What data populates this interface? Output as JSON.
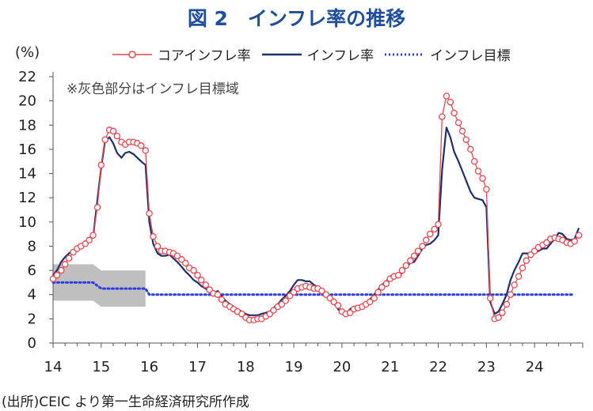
{
  "title": "図 2　インフレ率の推移",
  "unit_label": "(%)",
  "note": "※灰色部分はインフレ目標域",
  "source": "(出所)CEIC より第一生命経済研究所作成",
  "legend": {
    "core": "コアインフレ率",
    "headline": "インフレ率",
    "target": "インフレ目標"
  },
  "colors": {
    "title": "#1f4e9c",
    "core": "#e8474f",
    "headline": "#1f2f6b",
    "target": "#2b3fe0",
    "band": "#bfbfbf"
  },
  "chart_data": {
    "type": "line",
    "xlim": [
      14,
      25
    ],
    "ylim": [
      0,
      22
    ],
    "x_ticks": [
      "14",
      "15",
      "16",
      "17",
      "18",
      "19",
      "20",
      "21",
      "22",
      "23",
      "24"
    ],
    "y_ticks": [
      "0",
      "2",
      "4",
      "6",
      "8",
      "10",
      "12",
      "14",
      "16",
      "18",
      "20",
      "22"
    ],
    "grid": false,
    "legend_position": "top",
    "series": [
      {
        "name": "コアインフレ率",
        "marker": "circle",
        "points": [
          [
            14.0,
            5.3
          ],
          [
            14.08,
            5.6
          ],
          [
            14.17,
            6.0
          ],
          [
            14.25,
            6.5
          ],
          [
            14.33,
            7.0
          ],
          [
            14.42,
            7.5
          ],
          [
            14.5,
            7.8
          ],
          [
            14.58,
            8.0
          ],
          [
            14.67,
            8.2
          ],
          [
            14.75,
            8.5
          ],
          [
            14.83,
            8.9
          ],
          [
            14.92,
            11.2
          ],
          [
            15.0,
            14.7
          ],
          [
            15.08,
            16.8
          ],
          [
            15.17,
            17.6
          ],
          [
            15.25,
            17.5
          ],
          [
            15.33,
            17.1
          ],
          [
            15.42,
            16.6
          ],
          [
            15.5,
            16.4
          ],
          [
            15.58,
            16.6
          ],
          [
            15.67,
            16.6
          ],
          [
            15.75,
            16.5
          ],
          [
            15.83,
            16.3
          ],
          [
            15.92,
            15.9
          ],
          [
            16.0,
            10.7
          ],
          [
            16.08,
            8.8
          ],
          [
            16.17,
            8.0
          ],
          [
            16.25,
            7.6
          ],
          [
            16.33,
            7.6
          ],
          [
            16.42,
            7.5
          ],
          [
            16.5,
            7.4
          ],
          [
            16.58,
            7.2
          ],
          [
            16.67,
            6.9
          ],
          [
            16.75,
            6.6
          ],
          [
            16.83,
            6.2
          ],
          [
            16.92,
            6.0
          ],
          [
            17.0,
            5.6
          ],
          [
            17.08,
            5.2
          ],
          [
            17.17,
            4.8
          ],
          [
            17.25,
            4.4
          ],
          [
            17.33,
            4.1
          ],
          [
            17.42,
            4.0
          ],
          [
            17.5,
            3.6
          ],
          [
            17.58,
            3.2
          ],
          [
            17.67,
            3.0
          ],
          [
            17.75,
            2.8
          ],
          [
            17.83,
            2.6
          ],
          [
            17.92,
            2.4
          ],
          [
            18.0,
            2.1
          ],
          [
            18.08,
            1.9
          ],
          [
            18.17,
            1.9
          ],
          [
            18.25,
            2.0
          ],
          [
            18.33,
            2.0
          ],
          [
            18.42,
            2.2
          ],
          [
            18.5,
            2.4
          ],
          [
            18.58,
            2.7
          ],
          [
            18.67,
            3.0
          ],
          [
            18.75,
            3.2
          ],
          [
            18.83,
            3.5
          ],
          [
            18.92,
            3.9
          ],
          [
            19.0,
            4.2
          ],
          [
            19.08,
            4.5
          ],
          [
            19.17,
            4.6
          ],
          [
            19.25,
            4.7
          ],
          [
            19.33,
            4.6
          ],
          [
            19.42,
            4.5
          ],
          [
            19.5,
            4.5
          ],
          [
            19.58,
            4.3
          ],
          [
            19.67,
            4.0
          ],
          [
            19.75,
            3.7
          ],
          [
            19.83,
            3.4
          ],
          [
            19.92,
            3.1
          ],
          [
            20.0,
            2.6
          ],
          [
            20.08,
            2.4
          ],
          [
            20.17,
            2.5
          ],
          [
            20.25,
            2.8
          ],
          [
            20.33,
            2.9
          ],
          [
            20.42,
            3.0
          ],
          [
            20.5,
            3.2
          ],
          [
            20.58,
            3.4
          ],
          [
            20.67,
            3.7
          ],
          [
            20.75,
            4.2
          ],
          [
            20.83,
            4.6
          ],
          [
            20.92,
            4.9
          ],
          [
            21.0,
            5.3
          ],
          [
            21.08,
            5.5
          ],
          [
            21.17,
            5.6
          ],
          [
            21.25,
            6.0
          ],
          [
            21.33,
            6.4
          ],
          [
            21.42,
            6.8
          ],
          [
            21.5,
            7.2
          ],
          [
            21.58,
            7.6
          ],
          [
            21.67,
            8.0
          ],
          [
            21.75,
            8.5
          ],
          [
            21.83,
            9.0
          ],
          [
            21.92,
            9.4
          ],
          [
            22.0,
            9.8
          ],
          [
            22.08,
            18.7
          ],
          [
            22.17,
            20.4
          ],
          [
            22.25,
            19.9
          ],
          [
            22.33,
            19.0
          ],
          [
            22.42,
            18.2
          ],
          [
            22.5,
            17.5
          ],
          [
            22.58,
            16.8
          ],
          [
            22.67,
            16.0
          ],
          [
            22.75,
            15.0
          ],
          [
            22.83,
            14.2
          ],
          [
            22.92,
            13.6
          ],
          [
            23.0,
            12.7
          ],
          [
            23.08,
            3.7
          ],
          [
            23.17,
            2.0
          ],
          [
            23.25,
            2.1
          ],
          [
            23.33,
            2.5
          ],
          [
            23.42,
            3.2
          ],
          [
            23.5,
            4.0
          ],
          [
            23.58,
            4.8
          ],
          [
            23.67,
            5.5
          ],
          [
            23.75,
            6.2
          ],
          [
            23.83,
            6.8
          ],
          [
            23.92,
            7.3
          ],
          [
            24.0,
            7.6
          ],
          [
            24.08,
            7.9
          ],
          [
            24.17,
            8.1
          ],
          [
            24.25,
            8.3
          ],
          [
            24.33,
            8.6
          ],
          [
            24.42,
            8.7
          ],
          [
            24.5,
            8.6
          ],
          [
            24.58,
            8.5
          ],
          [
            24.67,
            8.3
          ],
          [
            24.75,
            8.2
          ],
          [
            24.83,
            8.4
          ],
          [
            24.92,
            8.9
          ]
        ]
      },
      {
        "name": "インフレ率",
        "marker": "none",
        "points": [
          [
            14.0,
            5.6
          ],
          [
            14.08,
            6.0
          ],
          [
            14.17,
            6.7
          ],
          [
            14.25,
            7.1
          ],
          [
            14.33,
            7.4
          ],
          [
            14.42,
            7.7
          ],
          [
            14.5,
            7.6
          ],
          [
            14.58,
            7.9
          ],
          [
            14.67,
            8.3
          ],
          [
            14.75,
            8.6
          ],
          [
            14.83,
            8.7
          ],
          [
            14.92,
            11.8
          ],
          [
            15.0,
            14.5
          ],
          [
            15.08,
            16.7
          ],
          [
            15.17,
            17.0
          ],
          [
            15.25,
            16.5
          ],
          [
            15.33,
            15.7
          ],
          [
            15.42,
            15.3
          ],
          [
            15.5,
            15.7
          ],
          [
            15.58,
            15.8
          ],
          [
            15.67,
            15.6
          ],
          [
            15.75,
            15.3
          ],
          [
            15.83,
            15.0
          ],
          [
            15.92,
            14.7
          ],
          [
            16.0,
            10.0
          ],
          [
            16.08,
            8.2
          ],
          [
            16.17,
            7.4
          ],
          [
            16.25,
            7.2
          ],
          [
            16.33,
            7.2
          ],
          [
            16.42,
            7.3
          ],
          [
            16.5,
            7.0
          ],
          [
            16.58,
            6.7
          ],
          [
            16.67,
            6.3
          ],
          [
            16.75,
            5.9
          ],
          [
            16.83,
            5.6
          ],
          [
            16.92,
            5.2
          ],
          [
            17.0,
            5.0
          ],
          [
            17.08,
            4.7
          ],
          [
            17.17,
            4.5
          ],
          [
            17.25,
            4.2
          ],
          [
            17.33,
            4.1
          ],
          [
            17.42,
            4.3
          ],
          [
            17.5,
            3.9
          ],
          [
            17.58,
            3.5
          ],
          [
            17.67,
            3.2
          ],
          [
            17.75,
            3.0
          ],
          [
            17.83,
            2.8
          ],
          [
            17.92,
            2.6
          ],
          [
            18.0,
            2.4
          ],
          [
            18.08,
            2.3
          ],
          [
            18.17,
            2.3
          ],
          [
            18.25,
            2.3
          ],
          [
            18.33,
            2.4
          ],
          [
            18.42,
            2.5
          ],
          [
            18.5,
            2.6
          ],
          [
            18.58,
            2.9
          ],
          [
            18.67,
            3.2
          ],
          [
            18.75,
            3.6
          ],
          [
            18.83,
            3.9
          ],
          [
            18.92,
            4.3
          ],
          [
            19.0,
            4.8
          ],
          [
            19.08,
            5.2
          ],
          [
            19.17,
            5.2
          ],
          [
            19.25,
            5.1
          ],
          [
            19.33,
            5.1
          ],
          [
            19.42,
            4.8
          ],
          [
            19.5,
            4.6
          ],
          [
            19.58,
            4.2
          ],
          [
            19.67,
            3.9
          ],
          [
            19.75,
            3.6
          ],
          [
            19.83,
            3.3
          ],
          [
            19.92,
            2.8
          ],
          [
            20.0,
            2.5
          ],
          [
            20.08,
            2.4
          ],
          [
            20.17,
            2.8
          ],
          [
            20.25,
            3.0
          ],
          [
            20.33,
            3.0
          ],
          [
            20.42,
            3.2
          ],
          [
            20.5,
            3.3
          ],
          [
            20.58,
            3.6
          ],
          [
            20.67,
            4.0
          ],
          [
            20.75,
            4.4
          ],
          [
            20.83,
            4.8
          ],
          [
            20.92,
            5.1
          ],
          [
            21.0,
            5.5
          ],
          [
            21.08,
            5.7
          ],
          [
            21.17,
            5.5
          ],
          [
            21.25,
            5.8
          ],
          [
            21.33,
            6.3
          ],
          [
            21.42,
            6.6
          ],
          [
            21.5,
            6.7
          ],
          [
            21.58,
            7.2
          ],
          [
            21.67,
            7.8
          ],
          [
            21.75,
            8.1
          ],
          [
            21.83,
            8.2
          ],
          [
            21.92,
            8.5
          ],
          [
            22.0,
            8.9
          ],
          [
            22.08,
            14.3
          ],
          [
            22.17,
            17.8
          ],
          [
            22.25,
            17.0
          ],
          [
            22.33,
            15.8
          ],
          [
            22.42,
            15.0
          ],
          [
            22.5,
            14.2
          ],
          [
            22.58,
            13.4
          ],
          [
            22.67,
            12.5
          ],
          [
            22.75,
            12.0
          ],
          [
            22.83,
            11.9
          ],
          [
            22.92,
            11.8
          ],
          [
            23.0,
            11.2
          ],
          [
            23.08,
            3.4
          ],
          [
            23.17,
            2.4
          ],
          [
            23.25,
            2.6
          ],
          [
            23.33,
            3.2
          ],
          [
            23.42,
            4.0
          ],
          [
            23.5,
            5.2
          ],
          [
            23.58,
            6.0
          ],
          [
            23.67,
            6.7
          ],
          [
            23.75,
            7.4
          ],
          [
            23.83,
            7.4
          ],
          [
            23.92,
            7.4
          ],
          [
            24.0,
            7.5
          ],
          [
            24.08,
            7.6
          ],
          [
            24.17,
            7.8
          ],
          [
            24.25,
            7.8
          ],
          [
            24.33,
            8.2
          ],
          [
            24.42,
            8.6
          ],
          [
            24.5,
            9.1
          ],
          [
            24.58,
            9.0
          ],
          [
            24.67,
            8.6
          ],
          [
            24.75,
            8.5
          ],
          [
            24.83,
            8.6
          ],
          [
            24.92,
            9.5
          ]
        ]
      },
      {
        "name": "インフレ目標",
        "marker": "dotted",
        "points": [
          [
            14.0,
            5.0
          ],
          [
            14.5,
            5.0
          ],
          [
            14.83,
            5.0
          ],
          [
            15.0,
            4.5
          ],
          [
            15.5,
            4.5
          ],
          [
            15.92,
            4.5
          ],
          [
            16.0,
            4.0
          ],
          [
            17.0,
            4.0
          ],
          [
            18.0,
            4.0
          ],
          [
            19.0,
            4.0
          ],
          [
            20.0,
            4.0
          ],
          [
            21.0,
            4.0
          ],
          [
            22.0,
            4.0
          ],
          [
            23.0,
            4.0
          ],
          [
            24.0,
            4.0
          ],
          [
            24.83,
            4.0
          ]
        ]
      }
    ],
    "target_band": {
      "segments": [
        {
          "x": [
            14.0,
            14.83
          ],
          "y": [
            3.5,
            6.5
          ]
        },
        {
          "x": [
            14.83,
            15.0
          ],
          "y": [
            3.0,
            6.0
          ],
          "transition": true
        },
        {
          "x": [
            15.0,
            15.92
          ],
          "y": [
            3.0,
            6.0
          ]
        }
      ]
    }
  }
}
